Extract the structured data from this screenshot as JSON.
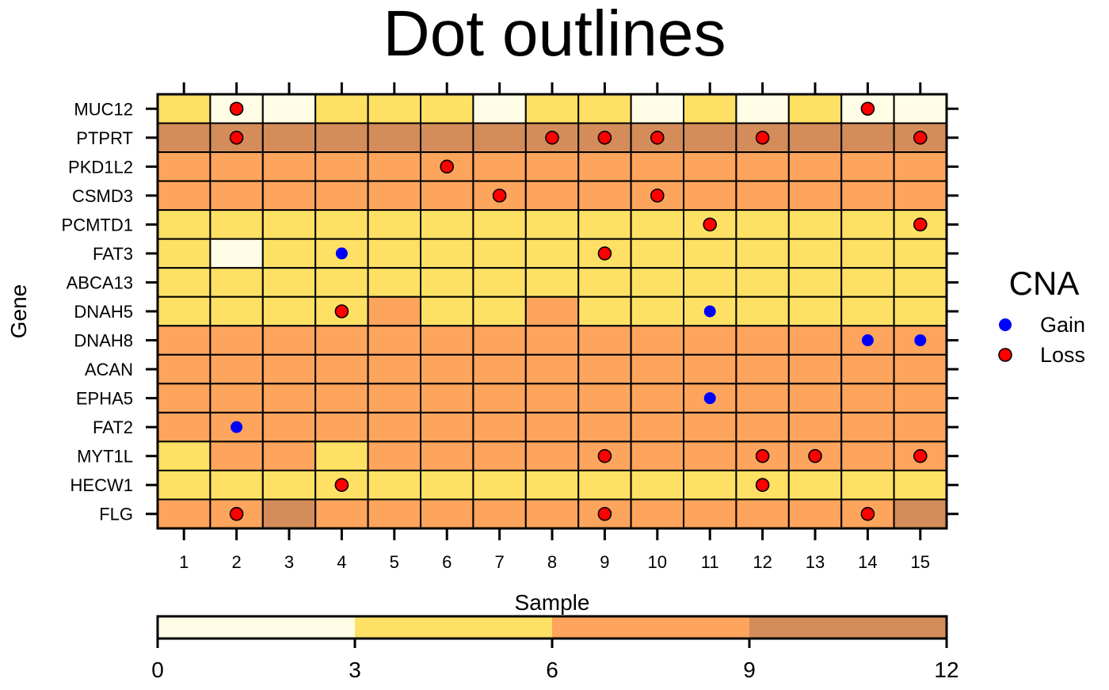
{
  "chart_data": {
    "type": "heatmap",
    "title": "Dot outlines",
    "xlabel": "Sample",
    "ylabel": "Gene",
    "x": [
      "1",
      "2",
      "3",
      "4",
      "5",
      "6",
      "7",
      "8",
      "9",
      "10",
      "11",
      "12",
      "13",
      "14",
      "15"
    ],
    "y": [
      "MUC12",
      "PTPRT",
      "PKD1L2",
      "CSMD3",
      "PCMTD1",
      "FAT3",
      "ABCA13",
      "DNAH5",
      "DNAH8",
      "ACAN",
      "EPHA5",
      "FAT2",
      "MYT1L",
      "HECW1",
      "FLG"
    ],
    "values": [
      [
        4,
        1,
        1,
        4,
        4,
        4,
        1,
        4,
        4,
        1,
        4,
        1,
        4,
        1,
        1
      ],
      [
        10,
        10,
        10,
        10,
        10,
        10,
        10,
        10,
        10,
        10,
        10,
        10,
        10,
        10,
        10
      ],
      [
        7,
        7,
        7,
        7,
        7,
        7,
        7,
        7,
        7,
        7,
        7,
        7,
        7,
        7,
        7
      ],
      [
        7,
        7,
        7,
        7,
        7,
        7,
        7,
        7,
        7,
        7,
        7,
        7,
        7,
        7,
        7
      ],
      [
        4,
        4,
        4,
        4,
        4,
        4,
        4,
        4,
        4,
        4,
        4,
        4,
        4,
        4,
        4
      ],
      [
        4,
        1,
        4,
        4,
        4,
        4,
        4,
        4,
        4,
        4,
        4,
        4,
        4,
        4,
        4
      ],
      [
        4,
        4,
        4,
        4,
        4,
        4,
        4,
        4,
        4,
        4,
        4,
        4,
        4,
        4,
        4
      ],
      [
        4,
        4,
        4,
        4,
        7,
        4,
        4,
        7,
        4,
        4,
        4,
        4,
        4,
        4,
        4
      ],
      [
        7,
        7,
        7,
        7,
        7,
        7,
        7,
        7,
        7,
        7,
        7,
        7,
        7,
        7,
        7
      ],
      [
        7,
        7,
        7,
        7,
        7,
        7,
        7,
        7,
        7,
        7,
        7,
        7,
        7,
        7,
        7
      ],
      [
        7,
        7,
        7,
        7,
        7,
        7,
        7,
        7,
        7,
        7,
        7,
        7,
        7,
        7,
        7
      ],
      [
        7,
        7,
        7,
        7,
        7,
        7,
        7,
        7,
        7,
        7,
        7,
        7,
        7,
        7,
        7
      ],
      [
        4,
        7,
        7,
        4,
        7,
        7,
        7,
        7,
        7,
        7,
        7,
        7,
        7,
        7,
        7
      ],
      [
        4,
        4,
        4,
        4,
        4,
        4,
        4,
        4,
        4,
        4,
        4,
        4,
        4,
        4,
        4
      ],
      [
        7,
        7,
        10,
        7,
        7,
        7,
        7,
        7,
        7,
        7,
        7,
        7,
        7,
        7,
        10
      ]
    ],
    "points": [
      {
        "sample": 2,
        "gene": "MUC12",
        "type": "Loss"
      },
      {
        "sample": 14,
        "gene": "MUC12",
        "type": "Loss"
      },
      {
        "sample": 2,
        "gene": "PTPRT",
        "type": "Loss"
      },
      {
        "sample": 8,
        "gene": "PTPRT",
        "type": "Loss"
      },
      {
        "sample": 9,
        "gene": "PTPRT",
        "type": "Loss"
      },
      {
        "sample": 10,
        "gene": "PTPRT",
        "type": "Loss"
      },
      {
        "sample": 12,
        "gene": "PTPRT",
        "type": "Loss"
      },
      {
        "sample": 15,
        "gene": "PTPRT",
        "type": "Loss"
      },
      {
        "sample": 6,
        "gene": "PKD1L2",
        "type": "Loss"
      },
      {
        "sample": 7,
        "gene": "CSMD3",
        "type": "Loss"
      },
      {
        "sample": 10,
        "gene": "CSMD3",
        "type": "Loss"
      },
      {
        "sample": 11,
        "gene": "PCMTD1",
        "type": "Loss"
      },
      {
        "sample": 15,
        "gene": "PCMTD1",
        "type": "Loss"
      },
      {
        "sample": 4,
        "gene": "FAT3",
        "type": "Gain"
      },
      {
        "sample": 9,
        "gene": "FAT3",
        "type": "Loss"
      },
      {
        "sample": 4,
        "gene": "DNAH5",
        "type": "Loss"
      },
      {
        "sample": 11,
        "gene": "DNAH5",
        "type": "Gain"
      },
      {
        "sample": 14,
        "gene": "DNAH8",
        "type": "Gain"
      },
      {
        "sample": 15,
        "gene": "DNAH8",
        "type": "Gain"
      },
      {
        "sample": 11,
        "gene": "EPHA5",
        "type": "Gain"
      },
      {
        "sample": 2,
        "gene": "FAT2",
        "type": "Gain"
      },
      {
        "sample": 9,
        "gene": "MYT1L",
        "type": "Loss"
      },
      {
        "sample": 12,
        "gene": "MYT1L",
        "type": "Loss"
      },
      {
        "sample": 13,
        "gene": "MYT1L",
        "type": "Loss"
      },
      {
        "sample": 15,
        "gene": "MYT1L",
        "type": "Loss"
      },
      {
        "sample": 4,
        "gene": "HECW1",
        "type": "Loss"
      },
      {
        "sample": 12,
        "gene": "HECW1",
        "type": "Loss"
      },
      {
        "sample": 2,
        "gene": "FLG",
        "type": "Loss"
      },
      {
        "sample": 9,
        "gene": "FLG",
        "type": "Loss"
      },
      {
        "sample": 14,
        "gene": "FLG",
        "type": "Loss"
      }
    ],
    "legend": {
      "title": "CNA",
      "placement": "right",
      "entries": [
        {
          "label": "Gain",
          "color": "#0000ff"
        },
        {
          "label": "Loss",
          "color": "#ff0000"
        }
      ]
    },
    "colorbar": {
      "placement": "bottom",
      "range": [
        0,
        12
      ],
      "ticks": [
        "0",
        "3",
        "6",
        "9",
        "12"
      ],
      "bins": [
        {
          "from": 0,
          "to": 3,
          "color": "#fffde6"
        },
        {
          "from": 3,
          "to": 6,
          "color": "#fee164"
        },
        {
          "from": 6,
          "to": 9,
          "color": "#fda45d"
        },
        {
          "from": 9,
          "to": 12,
          "color": "#d48c5a"
        }
      ]
    },
    "outline_color": "#000000"
  }
}
